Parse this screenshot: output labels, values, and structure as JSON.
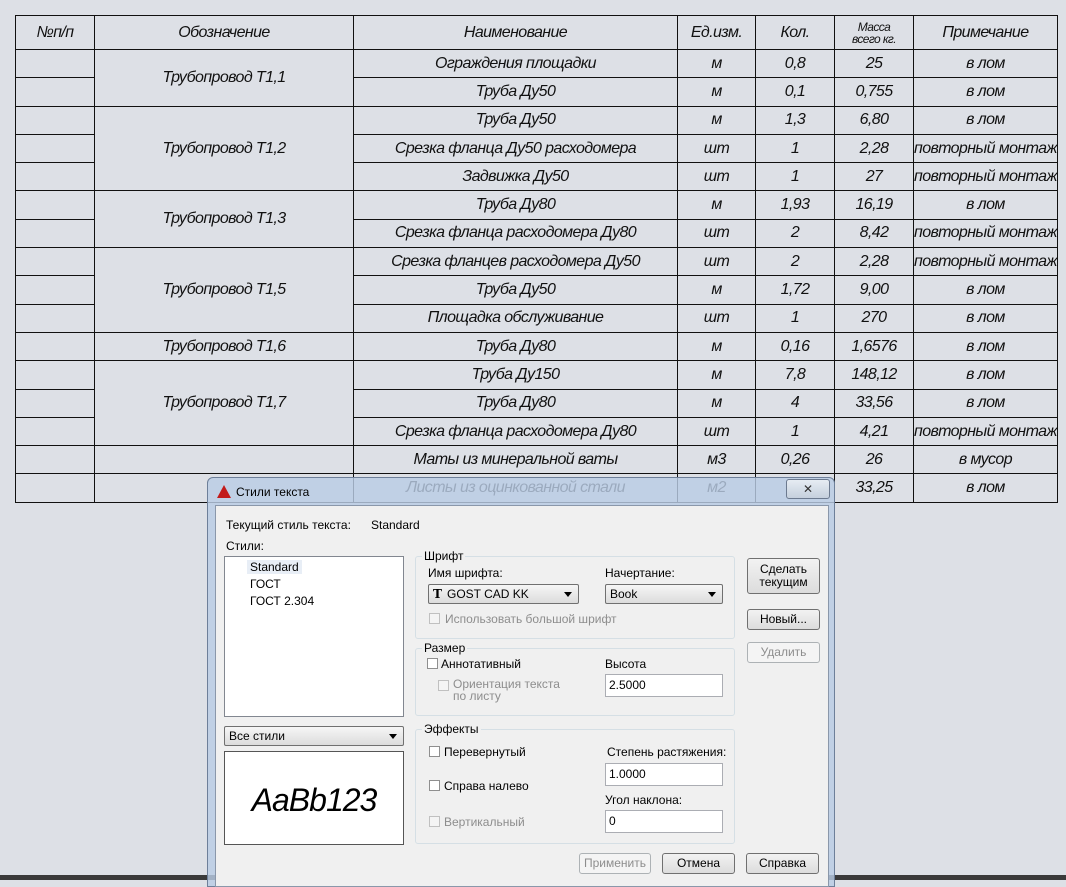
{
  "table": {
    "header": [
      "№п/п",
      "Обозначение",
      "Наименование",
      "Ед.изм.",
      "Кол.",
      [
        "Масса",
        "всего кг."
      ],
      "Примечание"
    ],
    "groups": [
      {
        "designation": "Трубопровод Т1,1",
        "rows": [
          [
            "Ограждения площадки",
            "м",
            "0,8",
            "25",
            "в лом"
          ],
          [
            "Труба Ду50",
            "м",
            "0,1",
            "0,755",
            "в лом"
          ]
        ]
      },
      {
        "designation": "Трубопровод Т1,2",
        "rows": [
          [
            "Труба Ду50",
            "м",
            "1,3",
            "6,80",
            "в лом"
          ],
          [
            "Срезка фланца Ду50 расходомера",
            "шт",
            "1",
            "2,28",
            "повторный монтаж"
          ],
          [
            "Задвижка Ду50",
            "шт",
            "1",
            "27",
            "повторный монтаж"
          ]
        ]
      },
      {
        "designation": "Трубопровод Т1,3",
        "rows": [
          [
            "Труба Ду80",
            "м",
            "1,93",
            "16,19",
            "в лом"
          ],
          [
            "Срезка фланца расходомера Ду80",
            "шт",
            "2",
            "8,42",
            "повторный монтаж"
          ]
        ]
      },
      {
        "designation": "Трубопровод Т1,5",
        "rows": [
          [
            "Срезка фланцев расходомера Ду50",
            "шт",
            "2",
            "2,28",
            "повторный монтаж"
          ],
          [
            "Труба Ду50",
            "м",
            "1,72",
            "9,00",
            "в лом"
          ],
          [
            "Площадка обслуживание",
            "шт",
            "1",
            "270",
            "в лом"
          ]
        ]
      },
      {
        "designation": "Трубопровод Т1,6",
        "rows": [
          [
            "Труба Ду80",
            "м",
            "0,16",
            "1,6576",
            "в лом"
          ]
        ]
      },
      {
        "designation": "Трубопровод Т1,7",
        "rows": [
          [
            "Труба Ду150",
            "м",
            "7,8",
            "148,12",
            "в лом"
          ],
          [
            "Труба Ду80",
            "м",
            "4",
            "33,56",
            "в лом"
          ],
          [
            "Срезка фланца расходомера Ду80",
            "шт",
            "1",
            "4,21",
            "повторный монтаж"
          ]
        ]
      },
      {
        "rows": [
          [
            "Маты из минеральной ваты",
            "м3",
            "0,26",
            "26",
            "в мусор"
          ]
        ]
      },
      {
        "rows": [
          [
            "Листы из оцинкованной стали",
            "м2",
            null,
            "33,25",
            "в лом"
          ]
        ]
      }
    ]
  },
  "dialog": {
    "title": "Стили текста",
    "current_style_label": "Текущий стиль текста:",
    "current_style": "Standard",
    "styles_label": "Стили:",
    "styles": [
      "Standard",
      "ГОСТ",
      "ГОСТ 2.304"
    ],
    "filter": "Все стили",
    "preview": "AaBb123",
    "font_group": "Шрифт",
    "font_name_label": "Имя шрифта:",
    "font_name": "GOST CAD KK",
    "font_style_label": "Начертание:",
    "font_style": "Book",
    "big_font": "Использовать большой шрифт",
    "size_group": "Размер",
    "annotative": "Аннотативный",
    "paper_orient": "Ориентация текста по листу",
    "height_label": "Высота",
    "height": "2.5000",
    "effects_group": "Эффекты",
    "upside_down": "Перевернутый",
    "backwards": "Справа налево",
    "vertical": "Вертикальный",
    "width_label": "Степень растяжения:",
    "width_factor": "1.0000",
    "oblique_label": "Угол наклона:",
    "oblique": "0",
    "btn_set_current": "Сделать текущим",
    "btn_new": "Новый...",
    "btn_delete": "Удалить",
    "btn_apply": "Применить",
    "btn_cancel": "Отмена",
    "btn_help": "Справка"
  }
}
